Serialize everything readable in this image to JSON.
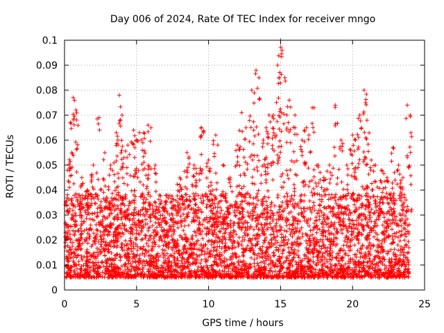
{
  "chart_data": {
    "type": "scatter",
    "title": "Day 006 of 2024, Rate Of TEC Index for receiver mngo",
    "xlabel": "GPS time / hours",
    "ylabel": "ROTI / TECUs",
    "xlim": [
      0,
      25
    ],
    "ylim": [
      0,
      0.1
    ],
    "xticks": [
      0,
      5,
      10,
      15,
      20,
      25
    ],
    "yticks": [
      0,
      0.01,
      0.02,
      0.03,
      0.04,
      0.05,
      0.06,
      0.07,
      0.08,
      0.09,
      0.1
    ],
    "xtick_labels": [
      "0",
      "5",
      "10",
      "15",
      "20",
      "25"
    ],
    "ytick_labels": [
      "0",
      "0.01",
      "0.02",
      "0.03",
      "0.04",
      "0.05",
      "0.06",
      "0.07",
      "0.08",
      "0.09",
      "0.1"
    ],
    "grid": true,
    "marker": "+",
    "color": "#ff0000",
    "series": [
      {
        "name": "ROTI",
        "baseline_band": [
          0.005,
          0.03
        ],
        "x": [
          0.2,
          0.4,
          0.5,
          0.6,
          0.8,
          1.2,
          1.6,
          2.0,
          2.4,
          2.8,
          3.2,
          3.6,
          3.8,
          4.0,
          4.4,
          4.8,
          5.0,
          5.2,
          5.5,
          5.8,
          6.0,
          6.3,
          7.0,
          7.5,
          8.0,
          8.5,
          9.0,
          9.5,
          10.0,
          10.3,
          10.5,
          11.0,
          11.5,
          12.0,
          12.3,
          12.6,
          13.0,
          13.3,
          13.5,
          13.8,
          14.0,
          14.2,
          14.5,
          14.8,
          14.9,
          15.0,
          15.1,
          15.3,
          15.6,
          16.0,
          16.5,
          16.8,
          17.2,
          17.6,
          18.0,
          18.4,
          18.8,
          19.2,
          19.6,
          20.0,
          20.2,
          20.5,
          20.8,
          20.9,
          21.0,
          21.3,
          21.6,
          22.0,
          22.4,
          22.8,
          23.2,
          23.5,
          23.8,
          24.0
        ],
        "y": [
          0.048,
          0.067,
          0.055,
          0.077,
          0.072,
          0.045,
          0.04,
          0.05,
          0.069,
          0.055,
          0.05,
          0.063,
          0.078,
          0.07,
          0.058,
          0.064,
          0.06,
          0.063,
          0.063,
          0.066,
          0.065,
          0.05,
          0.035,
          0.03,
          0.045,
          0.055,
          0.05,
          0.065,
          0.052,
          0.04,
          0.062,
          0.05,
          0.045,
          0.058,
          0.071,
          0.065,
          0.08,
          0.088,
          0.085,
          0.06,
          0.065,
          0.07,
          0.07,
          0.09,
          0.085,
          0.1,
          0.096,
          0.085,
          0.076,
          0.07,
          0.06,
          0.065,
          0.073,
          0.05,
          0.045,
          0.05,
          0.074,
          0.06,
          0.05,
          0.062,
          0.06,
          0.07,
          0.08,
          0.075,
          0.068,
          0.052,
          0.05,
          0.048,
          0.045,
          0.057,
          0.05,
          0.045,
          0.074,
          0.07
        ]
      }
    ]
  }
}
